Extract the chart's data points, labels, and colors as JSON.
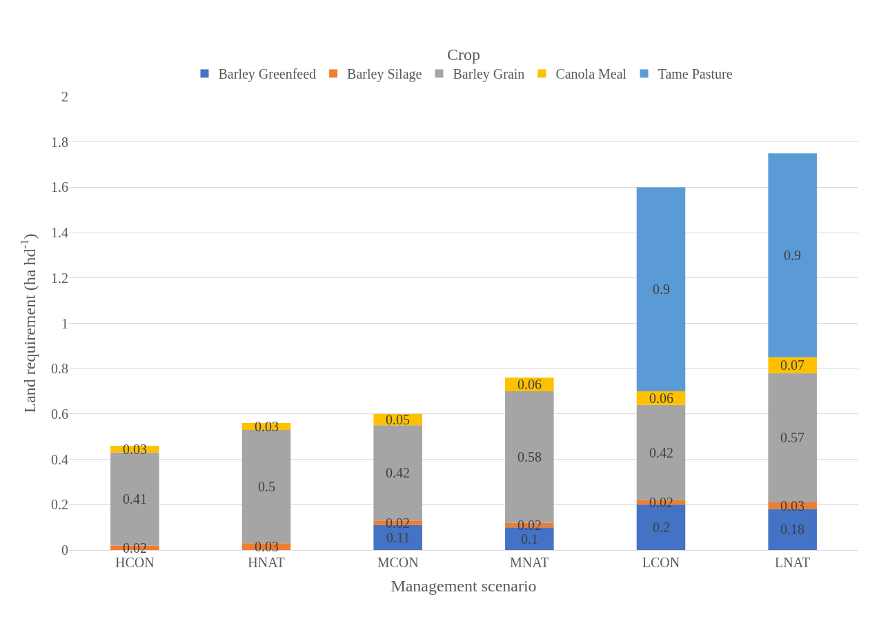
{
  "chart_data": {
    "type": "bar",
    "stacked": true,
    "legend_title": "Crop",
    "xlabel": "Management scenario",
    "ylabel": "Land requirement (ha hd$^{-1}$)",
    "categories": [
      "HCON",
      "HNAT",
      "MCON",
      "MNAT",
      "LCON",
      "LNAT"
    ],
    "series": [
      {
        "name": "Barley Greenfeed",
        "color": "#4472c4",
        "values": [
          null,
          null,
          0.11,
          0.1,
          0.2,
          0.18
        ]
      },
      {
        "name": "Barley Silage",
        "color": "#ed7d31",
        "values": [
          0.02,
          0.03,
          0.02,
          0.02,
          0.02,
          0.03
        ]
      },
      {
        "name": "Barley Grain",
        "color": "#a5a5a5",
        "values": [
          0.41,
          0.5,
          0.42,
          0.58,
          0.42,
          0.57
        ]
      },
      {
        "name": "Canola Meal",
        "color": "#ffc000",
        "values": [
          0.03,
          0.03,
          0.05,
          0.06,
          0.06,
          0.07
        ]
      },
      {
        "name": "Tame Pasture",
        "color": "#5b9bd5",
        "values": [
          null,
          null,
          null,
          null,
          0.9,
          0.9
        ]
      }
    ],
    "ylim": [
      0,
      2
    ],
    "yticks": [
      0,
      0.2,
      0.4,
      0.6,
      0.8,
      1,
      1.2,
      1.4,
      1.6,
      1.8,
      2
    ],
    "grid": "y",
    "legend": "top",
    "data_labels": true
  }
}
